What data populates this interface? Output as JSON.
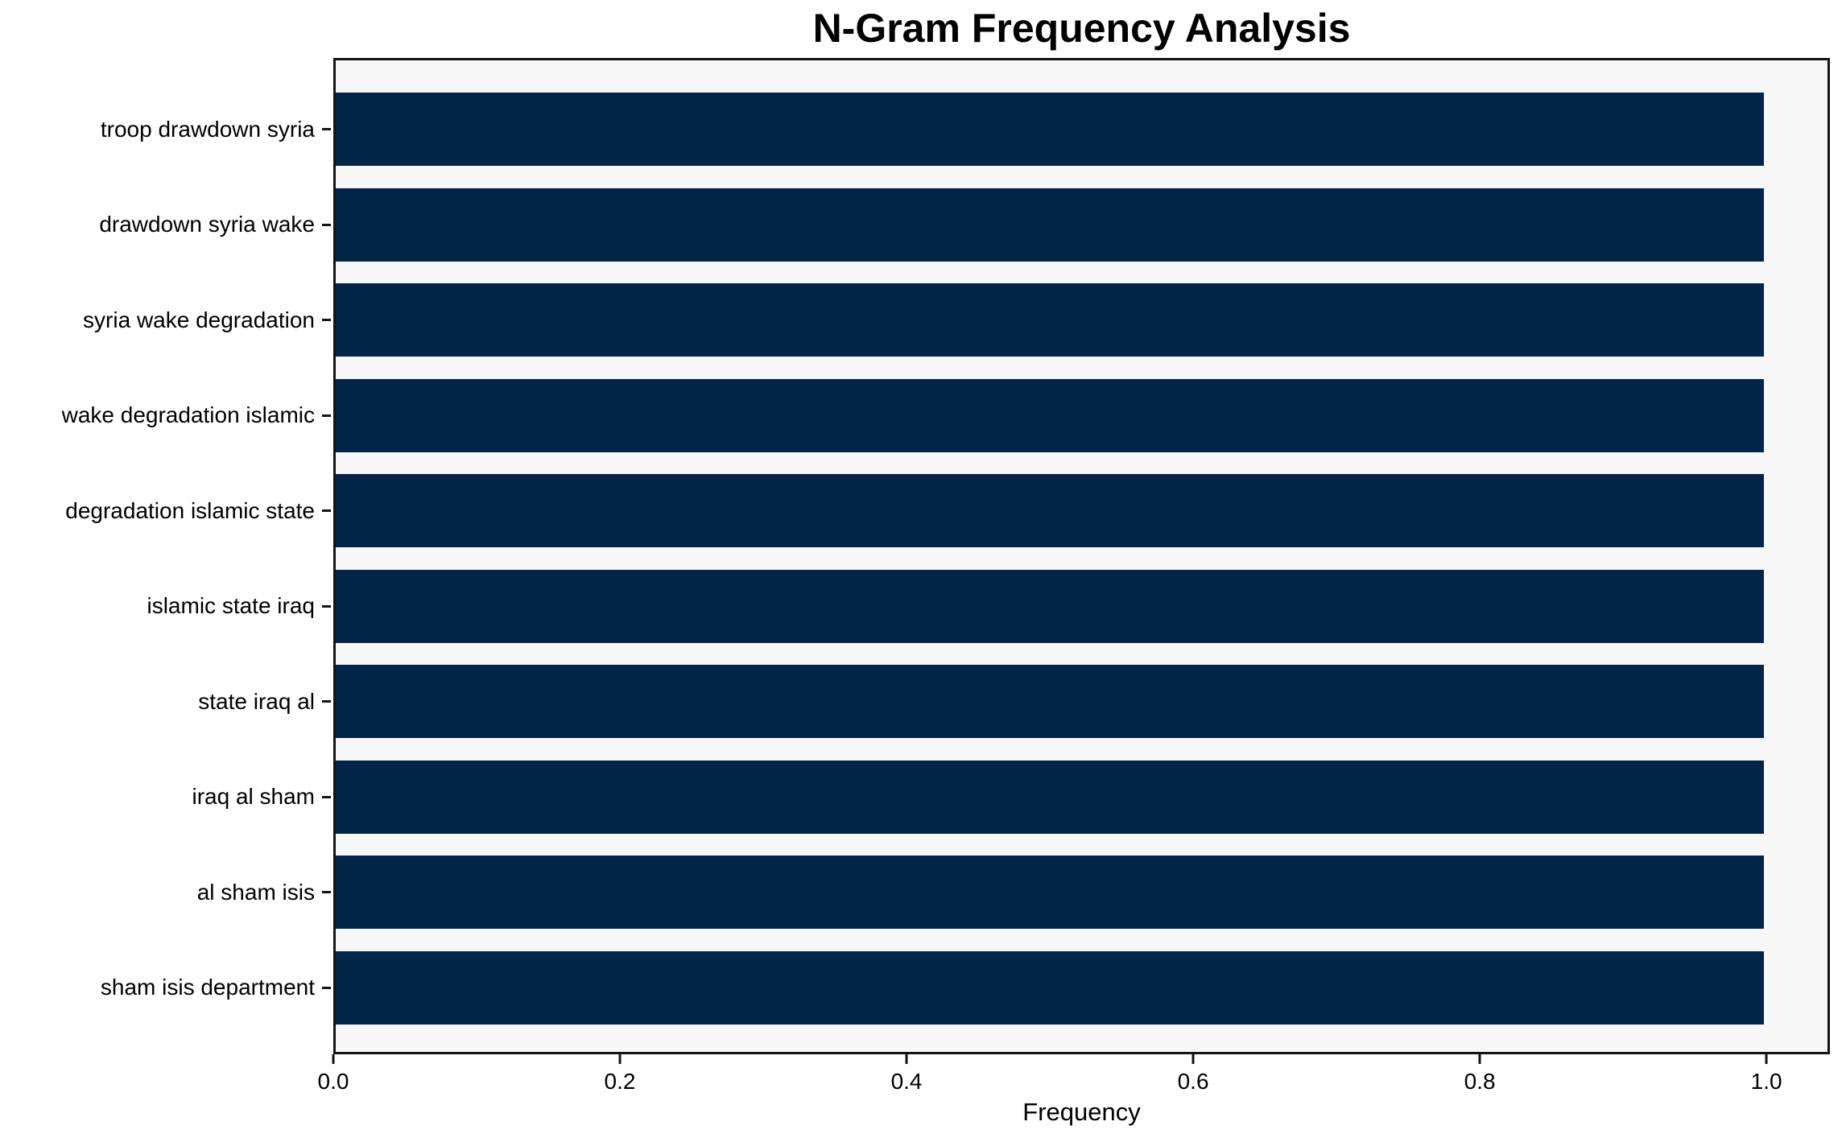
{
  "chart_data": {
    "type": "bar",
    "orientation": "horizontal",
    "title": "N-Gram Frequency Analysis",
    "xlabel": "Frequency",
    "ylabel": "",
    "categories": [
      "troop drawdown syria",
      "drawdown syria wake",
      "syria wake degradation",
      "wake degradation islamic",
      "degradation islamic state",
      "islamic state iraq",
      "state iraq al",
      "iraq al sham",
      "al sham isis",
      "sham isis department"
    ],
    "values": [
      1.0,
      1.0,
      1.0,
      1.0,
      1.0,
      1.0,
      1.0,
      1.0,
      1.0,
      1.0
    ],
    "x_ticks": [
      "0.0",
      "0.2",
      "0.4",
      "0.6",
      "0.8",
      "1.0"
    ],
    "xlim": [
      0,
      1.0443
    ],
    "grid": false,
    "legend": null,
    "colors": {
      "bar": "#032449",
      "plot_background": "#f7f7f8",
      "figure_background": "#ffffff",
      "spine": "#141414",
      "text": "#000000"
    }
  }
}
